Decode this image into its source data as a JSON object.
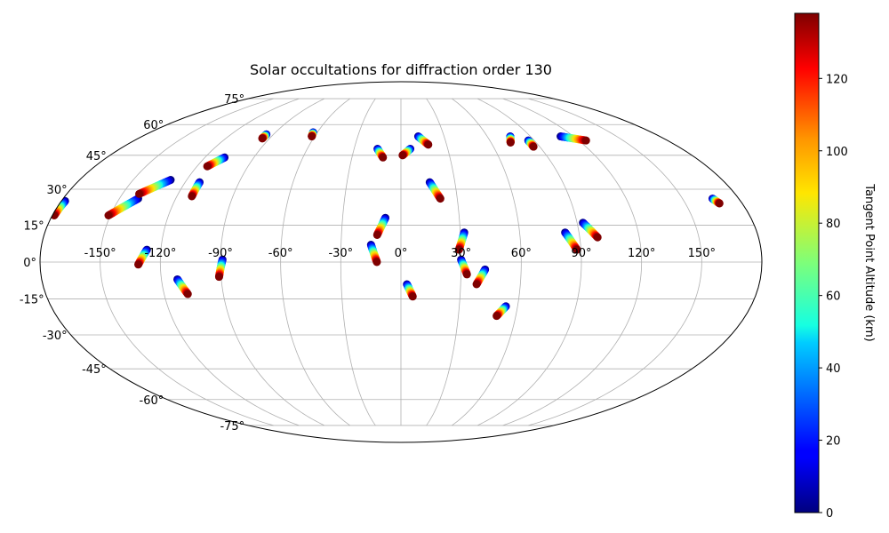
{
  "chart_data": {
    "type": "scatter",
    "projection": "mollweide",
    "title": "Solar occultations for diffraction order 130",
    "xlabel": "",
    "ylabel": "",
    "grid": true,
    "x_ticks": [
      "-150°",
      "-120°",
      "-90°",
      "-60°",
      "-30°",
      "0°",
      "30°",
      "60°",
      "90°",
      "120°",
      "150°"
    ],
    "x_tick_values": [
      -150,
      -120,
      -90,
      -60,
      -30,
      0,
      30,
      60,
      90,
      120,
      150
    ],
    "y_ticks": [
      "-75°",
      "-60°",
      "-45°",
      "-30°",
      "-15°",
      "0°",
      "15°",
      "30°",
      "45°",
      "60°",
      "75°"
    ],
    "y_tick_values": [
      -75,
      -60,
      -45,
      -30,
      -15,
      0,
      15,
      30,
      45,
      60,
      75
    ],
    "xlim": [
      -180,
      180
    ],
    "ylim": [
      -90,
      90
    ],
    "colorbar": {
      "label": "Tangent Point Altitude (km)",
      "range": [
        0,
        138
      ],
      "ticks": [
        "0",
        "20",
        "40",
        "60",
        "80",
        "100",
        "120"
      ],
      "tick_values": [
        0,
        20,
        40,
        60,
        80,
        100,
        120
      ],
      "colormap": "jet",
      "placement": "right"
    },
    "series": [
      {
        "lon_start": -178,
        "lat_start": 25,
        "lon_end": -179,
        "lat_end": 19
      },
      {
        "lon_start": -140,
        "lat_start": 26,
        "lon_end": -151,
        "lat_end": 19
      },
      {
        "lon_start": -129,
        "lat_start": 34,
        "lon_end": -141,
        "lat_end": 28
      },
      {
        "lon_start": -127,
        "lat_start": 5,
        "lon_end": -131,
        "lat_end": -1
      },
      {
        "lon_start": -108,
        "lat_start": 44,
        "lon_end": -114,
        "lat_end": 40
      },
      {
        "lon_start": -112,
        "lat_start": 33,
        "lon_end": -112,
        "lat_end": 27
      },
      {
        "lon_start": -112,
        "lat_start": -7,
        "lon_end": -108,
        "lat_end": -13
      },
      {
        "lon_start": -89,
        "lat_start": 1,
        "lon_end": -91,
        "lat_end": -6
      },
      {
        "lon_start": -95,
        "lat_start": 55,
        "lon_end": -95,
        "lat_end": 53
      },
      {
        "lon_start": -63,
        "lat_start": 56,
        "lon_end": -62,
        "lat_end": 54
      },
      {
        "lon_start": -15,
        "lat_start": 48,
        "lon_end": -11,
        "lat_end": 44
      },
      {
        "lon_start": 6,
        "lat_start": 48,
        "lon_end": 1,
        "lat_end": 45
      },
      {
        "lon_start": 12,
        "lat_start": 54,
        "lon_end": 18,
        "lat_end": 50
      },
      {
        "lon_start": -8,
        "lat_start": 18,
        "lon_end": -12,
        "lat_end": 11
      },
      {
        "lon_start": -15,
        "lat_start": 7,
        "lon_end": -12,
        "lat_end": 0
      },
      {
        "lon_start": 3,
        "lat_start": -9,
        "lon_end": 6,
        "lat_end": -14
      },
      {
        "lon_start": 16,
        "lat_start": 33,
        "lon_end": 21,
        "lat_end": 26
      },
      {
        "lon_start": 32,
        "lat_start": 12,
        "lon_end": 29,
        "lat_end": 5
      },
      {
        "lon_start": 30,
        "lat_start": 1,
        "lon_end": 33,
        "lat_end": -5
      },
      {
        "lon_start": 42,
        "lat_start": -3,
        "lon_end": 38,
        "lat_end": -9
      },
      {
        "lon_start": 54,
        "lat_start": -18,
        "lon_end": 50,
        "lat_end": -22
      },
      {
        "lon_start": 76,
        "lat_start": 54,
        "lon_end": 73,
        "lat_end": 51
      },
      {
        "lon_start": 86,
        "lat_start": 52,
        "lon_end": 86,
        "lat_end": 49
      },
      {
        "lon_start": 83,
        "lat_start": 12,
        "lon_end": 88,
        "lat_end": 5
      },
      {
        "lon_start": 93,
        "lat_start": 16,
        "lon_end": 99,
        "lat_end": 10
      },
      {
        "lon_start": 111,
        "lat_start": 54,
        "lon_end": 125,
        "lat_end": 52
      },
      {
        "lon_start": 166,
        "lat_start": 26,
        "lon_end": 168,
        "lat_end": 24
      }
    ]
  }
}
